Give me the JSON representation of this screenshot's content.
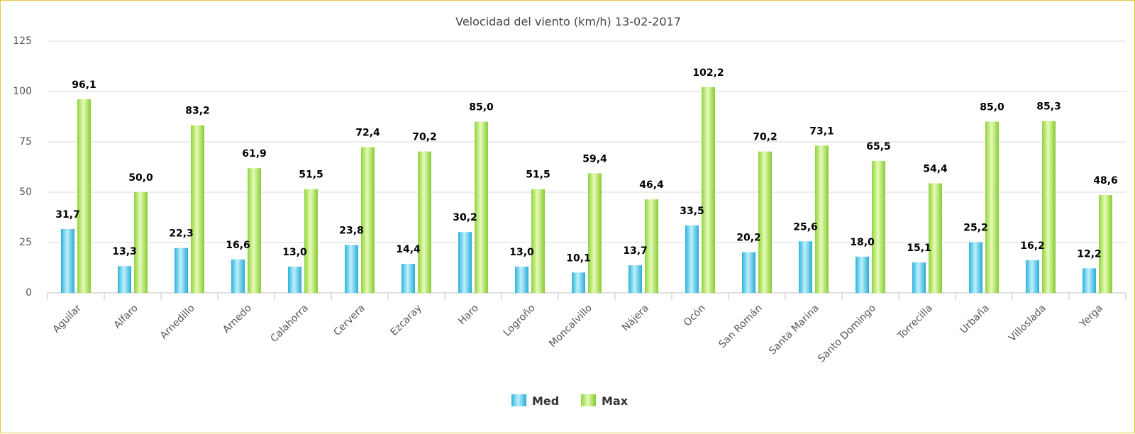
{
  "chart_data": {
    "type": "bar",
    "title": "Velocidad del viento (km/h) 13-02-2017",
    "xlabel": "",
    "ylabel": "",
    "ylim": [
      0,
      125
    ],
    "yticks": [
      0,
      25,
      50,
      75,
      100,
      125
    ],
    "grid": true,
    "legend_position": "bottom-center",
    "categories": [
      "Aguilar",
      "Alfaro",
      "Arnedillo",
      "Arnedo",
      "Calahorra",
      "Cervera",
      "Ezcaray",
      "Haro",
      "Logroño",
      "Moncalvillo",
      "Nájera",
      "Ocón",
      "San Román",
      "Santa Marina",
      "Santo Domingo",
      "Torrecilla",
      "Urbaña",
      "Villoslada",
      "Yerga"
    ],
    "series": [
      {
        "name": "Med",
        "color": "#4fc8e6",
        "values": [
          31.7,
          13.3,
          22.3,
          16.6,
          13.0,
          23.8,
          14.4,
          30.2,
          13.0,
          10.1,
          13.7,
          33.5,
          20.2,
          25.6,
          18.0,
          15.1,
          25.2,
          16.2,
          12.2
        ],
        "labels": [
          "31,7",
          "13,3",
          "22,3",
          "16,6",
          "13,0",
          "23,8",
          "14,4",
          "30,2",
          "13,0",
          "10,1",
          "13,7",
          "33,5",
          "20,2",
          "25,6",
          "18,0",
          "15,1",
          "25,2",
          "16,2",
          "12,2"
        ]
      },
      {
        "name": "Max",
        "color": "#a6e34a",
        "values": [
          96.1,
          50.0,
          83.2,
          61.9,
          51.5,
          72.4,
          70.2,
          85.0,
          51.5,
          59.4,
          46.4,
          102.2,
          70.2,
          73.1,
          65.5,
          54.4,
          85.0,
          85.3,
          48.6
        ],
        "labels": [
          "96,1",
          "50,0",
          "83,2",
          "61,9",
          "51,5",
          "72,4",
          "70,2",
          "85,0",
          "51,5",
          "59,4",
          "46,4",
          "102,2",
          "70,2",
          "73,1",
          "65,5",
          "54,4",
          "85,0",
          "85,3",
          "48,6"
        ]
      }
    ]
  }
}
